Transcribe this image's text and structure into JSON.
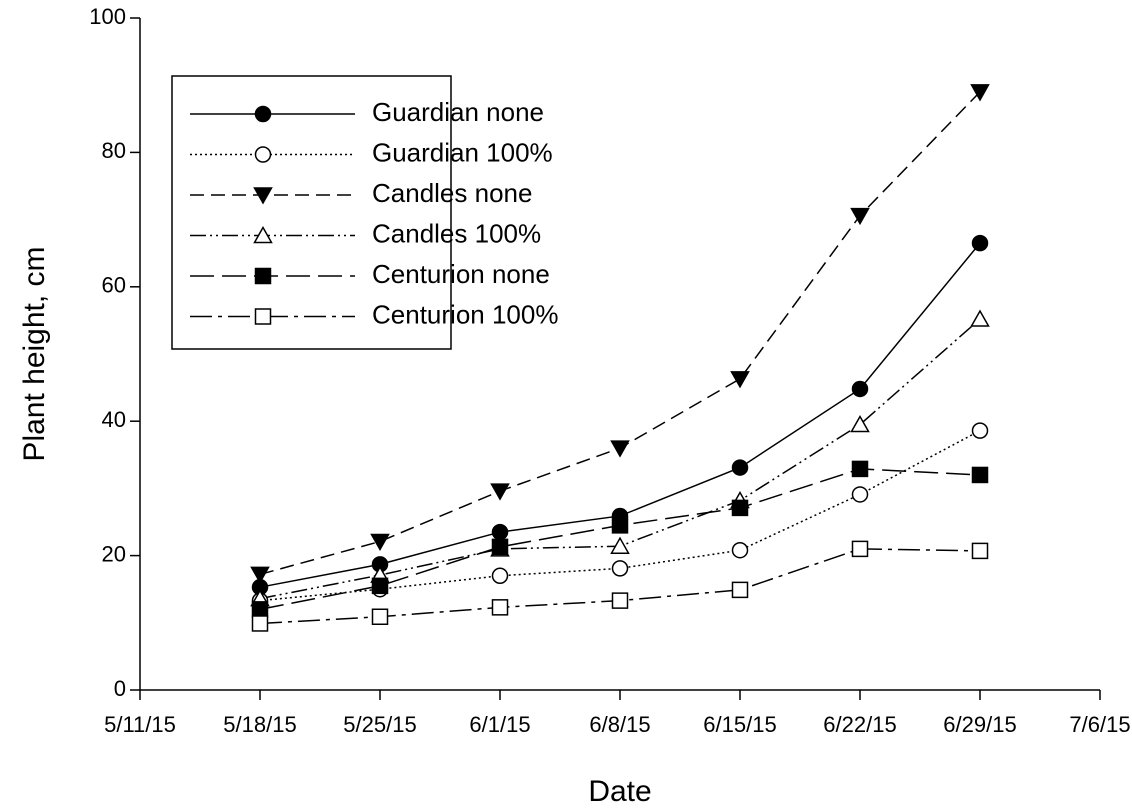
{
  "chart_data": {
    "type": "line",
    "x_label": "Date",
    "y_label": "Plant height, cm",
    "x": [
      "5/18/15",
      "5/25/15",
      "6/1/15",
      "6/8/15",
      "6/15/15",
      "6/22/15",
      "6/29/15"
    ],
    "xlim": [
      "5/11/15",
      "7/6/15"
    ],
    "xticks": [
      "5/11/15",
      "5/18/15",
      "5/25/15",
      "6/1/15",
      "6/8/15",
      "6/15/15",
      "6/22/15",
      "6/29/15",
      "7/6/15"
    ],
    "ylim": [
      0,
      100
    ],
    "yticks": [
      0,
      20,
      40,
      60,
      80,
      100
    ],
    "grid": false,
    "legend": "upper left",
    "series": [
      {
        "name": "Guardian none",
        "color": "#000000",
        "marker": "circle",
        "filled": true,
        "dash": "none",
        "values": [
          15.3,
          18.7,
          23.5,
          25.9,
          33.1,
          44.8,
          66.5
        ]
      },
      {
        "name": "Guardian 100%",
        "color": "#000000",
        "marker": "circle",
        "filled": false,
        "dash": "2 3",
        "values": [
          13.3,
          15.0,
          17.0,
          18.1,
          20.8,
          29.1,
          38.6
        ]
      },
      {
        "name": "Candles none",
        "color": "#000000",
        "marker": "triangle-down",
        "filled": true,
        "dash": "14 7",
        "values": [
          17.2,
          22.1,
          29.6,
          36.0,
          46.3,
          70.6,
          89.0
        ]
      },
      {
        "name": "Candles 100%",
        "color": "#000000",
        "marker": "triangle-up",
        "filled": false,
        "dash": "16 4 2 4 2 4",
        "values": [
          13.6,
          17.1,
          21.0,
          21.4,
          28.2,
          39.5,
          55.2
        ]
      },
      {
        "name": "Centurion none",
        "color": "#000000",
        "marker": "square",
        "filled": true,
        "dash": "24 8",
        "values": [
          12.0,
          15.5,
          21.3,
          24.5,
          27.1,
          32.9,
          32.0
        ]
      },
      {
        "name": "Centurion 100%",
        "color": "#000000",
        "marker": "square",
        "filled": false,
        "dash": "22 6 4 6",
        "values": [
          9.9,
          10.9,
          12.3,
          13.3,
          14.9,
          21.0,
          20.7
        ]
      }
    ]
  }
}
